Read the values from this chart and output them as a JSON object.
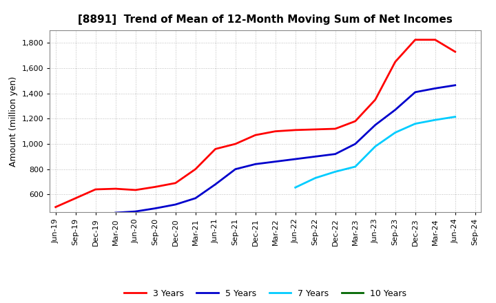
{
  "title": "[8891]  Trend of Mean of 12-Month Moving Sum of Net Incomes",
  "ylabel": "Amount (million yen)",
  "background_color": "#ffffff",
  "grid_color": "#aaaaaa",
  "x_labels": [
    "Jun-19",
    "Sep-19",
    "Dec-19",
    "Mar-20",
    "Jun-20",
    "Sep-20",
    "Dec-20",
    "Mar-21",
    "Jun-21",
    "Sep-21",
    "Dec-21",
    "Mar-22",
    "Jun-22",
    "Sep-22",
    "Dec-22",
    "Mar-23",
    "Jun-23",
    "Sep-23",
    "Dec-23",
    "Mar-24",
    "Jun-24",
    "Sep-24"
  ],
  "series": [
    {
      "label": "3 Years",
      "color": "#ff0000",
      "values": [
        500,
        570,
        640,
        645,
        635,
        660,
        690,
        800,
        960,
        1000,
        1070,
        1100,
        1110,
        1115,
        1120,
        1180,
        1350,
        1650,
        1825,
        1825,
        1730,
        null
      ]
    },
    {
      "label": "5 Years",
      "color": "#0000cc",
      "values": [
        null,
        null,
        null,
        455,
        465,
        490,
        520,
        570,
        680,
        800,
        840,
        860,
        880,
        900,
        920,
        1000,
        1150,
        1270,
        1410,
        1440,
        1465,
        null
      ]
    },
    {
      "label": "7 Years",
      "color": "#00ccff",
      "values": [
        null,
        null,
        null,
        null,
        null,
        null,
        null,
        null,
        null,
        null,
        null,
        null,
        655,
        730,
        780,
        820,
        980,
        1090,
        1160,
        1190,
        1215,
        null
      ]
    },
    {
      "label": "10 Years",
      "color": "#006600",
      "values": [
        null,
        null,
        null,
        null,
        null,
        null,
        null,
        null,
        null,
        null,
        null,
        null,
        null,
        null,
        null,
        null,
        null,
        null,
        null,
        null,
        null,
        null
      ]
    }
  ],
  "ylim": [
    460,
    1900
  ],
  "yticks": [
    600,
    800,
    1000,
    1200,
    1400,
    1600,
    1800
  ],
  "title_fontsize": 11,
  "axis_fontsize": 9,
  "tick_fontsize": 8,
  "legend_fontsize": 9
}
